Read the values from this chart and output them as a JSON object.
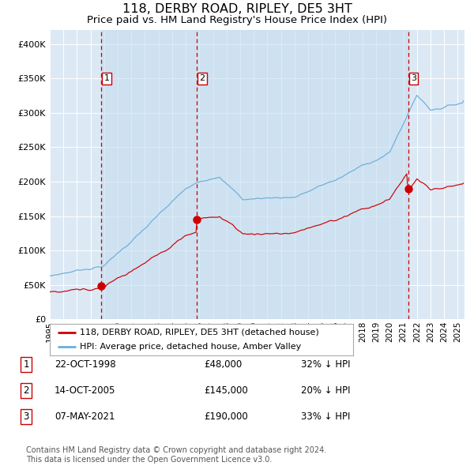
{
  "title": "118, DERBY ROAD, RIPLEY, DE5 3HT",
  "subtitle": "Price paid vs. HM Land Registry's House Price Index (HPI)",
  "title_fontsize": 11.5,
  "subtitle_fontsize": 9.5,
  "ylabel_ticks": [
    "£0",
    "£50K",
    "£100K",
    "£150K",
    "£200K",
    "£250K",
    "£300K",
    "£350K",
    "£400K"
  ],
  "ytick_values": [
    0,
    50000,
    100000,
    150000,
    200000,
    250000,
    300000,
    350000,
    400000
  ],
  "ylim": [
    0,
    420000
  ],
  "xlim_start": 1995.0,
  "xlim_end": 2025.5,
  "background_color": "#ffffff",
  "plot_bg_color": "#dce9f5",
  "grid_color": "#ffffff",
  "hpi_line_color": "#6baed6",
  "price_line_color": "#cc0000",
  "sale_marker_color": "#cc0000",
  "dashed_line_color": "#cc0000",
  "sale_events": [
    {
      "id": 1,
      "year": 1998.8,
      "price": 48000
    },
    {
      "id": 2,
      "year": 2005.8,
      "price": 145000
    },
    {
      "id": 3,
      "year": 2021.35,
      "price": 190000
    }
  ],
  "legend_items": [
    {
      "label": "118, DERBY ROAD, RIPLEY, DE5 3HT (detached house)",
      "color": "#cc0000"
    },
    {
      "label": "HPI: Average price, detached house, Amber Valley",
      "color": "#6baed6"
    }
  ],
  "footer_lines": [
    "Contains HM Land Registry data © Crown copyright and database right 2024.",
    "This data is licensed under the Open Government Licence v3.0."
  ],
  "table_rows": [
    {
      "id": 1,
      "date": "22-OCT-1998",
      "price": "£48,000",
      "pct": "32% ↓ HPI"
    },
    {
      "id": 2,
      "date": "14-OCT-2005",
      "price": "£145,000",
      "pct": "20% ↓ HPI"
    },
    {
      "id": 3,
      "date": "07-MAY-2021",
      "price": "£190,000",
      "pct": "33% ↓ HPI"
    }
  ]
}
